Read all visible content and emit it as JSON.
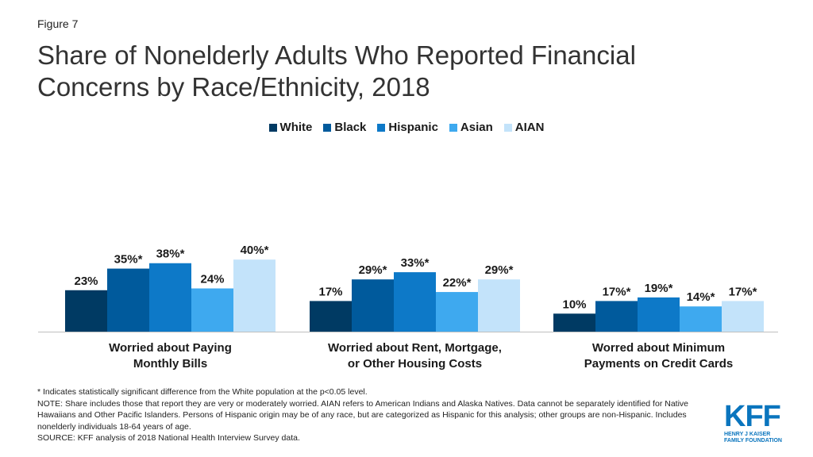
{
  "figure_label": "Figure 7",
  "chart_data": {
    "type": "bar",
    "title": "Share of Nonelderly Adults Who Reported Financial Concerns by Race/Ethnicity, 2018",
    "categories": [
      [
        "Worried about Paying",
        "Monthly Bills"
      ],
      [
        "Worried about Rent, Mortgage,",
        "or Other Housing Costs"
      ],
      [
        "Worred about Minimum",
        "Payments on Credit Cards"
      ]
    ],
    "series": [
      {
        "name": "White",
        "color": "#003a63",
        "values": [
          23,
          17,
          10
        ],
        "labels": [
          "23%",
          "17%",
          "10%"
        ]
      },
      {
        "name": "Black",
        "color": "#005a9c",
        "values": [
          35,
          29,
          17
        ],
        "labels": [
          "35%*",
          "29%*",
          "17%*"
        ]
      },
      {
        "name": "Hispanic",
        "color": "#0d79c8",
        "values": [
          38,
          33,
          19
        ],
        "labels": [
          "38%*",
          "33%*",
          "19%*"
        ]
      },
      {
        "name": "Asian",
        "color": "#3ea9ef",
        "values": [
          24,
          22,
          14
        ],
        "labels": [
          "24%",
          "22%*",
          "14%*"
        ]
      },
      {
        "name": "AIAN",
        "color": "#c3e3fa",
        "values": [
          40,
          29,
          17
        ],
        "labels": [
          "40%*",
          "29%*",
          "17%*"
        ]
      }
    ],
    "ylim": [
      0,
      40
    ],
    "legend_position": "top-center",
    "grid": false
  },
  "notes": {
    "significance": "* Indicates statistically significant difference from the White population at the p<0.05 level.",
    "note": "NOTE: Share includes those that report they are very or moderately worried. AIAN refers to American Indians and Alaska Natives. Data cannot be separately identified for Native Hawaiians and Other Pacific Islanders. Persons of Hispanic origin may be of any race, but are categorized as Hispanic for this analysis; other groups are non-Hispanic. Includes nonelderly individuals 18-64 years of age.",
    "source": "SOURCE: KFF analysis of 2018 National Health Interview Survey data."
  },
  "logo": {
    "mark": "KFF",
    "line1": "HENRY J KAISER",
    "line2": "FAMILY FOUNDATION"
  }
}
